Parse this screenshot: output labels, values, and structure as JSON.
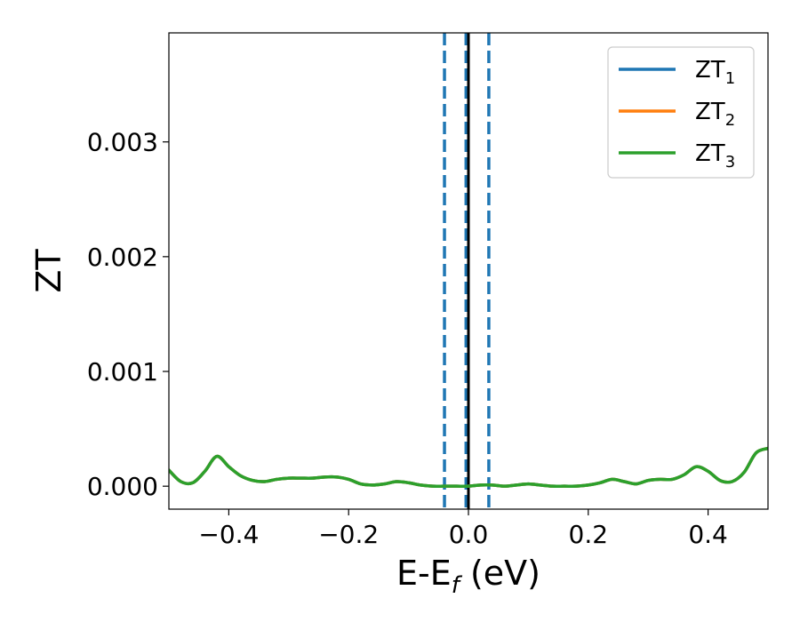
{
  "chart_data": {
    "type": "line",
    "xlabel": "E-E",
    "xlabel_sub": "f",
    "xlabel_unit": " (eV)",
    "ylabel": "ZT",
    "xlim": [
      -0.5,
      0.5
    ],
    "ylim": [
      -0.0002,
      0.00395
    ],
    "x_ticks": [
      -0.4,
      -0.2,
      0.0,
      0.2,
      0.4
    ],
    "x_tick_labels": [
      "−0.4",
      "−0.2",
      "0.0",
      "0.2",
      "0.4"
    ],
    "y_ticks": [
      0.0,
      0.001,
      0.002,
      0.003
    ],
    "y_tick_labels": [
      "0.000",
      "0.001",
      "0.002",
      "0.003"
    ],
    "legend_position": "top-right",
    "x": [
      -0.5,
      -0.48,
      -0.46,
      -0.44,
      -0.42,
      -0.4,
      -0.38,
      -0.36,
      -0.34,
      -0.32,
      -0.3,
      -0.28,
      -0.26,
      -0.24,
      -0.22,
      -0.2,
      -0.18,
      -0.16,
      -0.14,
      -0.12,
      -0.1,
      -0.08,
      -0.06,
      -0.04,
      -0.02,
      0.0,
      0.02,
      0.04,
      0.06,
      0.08,
      0.1,
      0.12,
      0.14,
      0.16,
      0.18,
      0.2,
      0.22,
      0.24,
      0.26,
      0.28,
      0.3,
      0.32,
      0.34,
      0.36,
      0.38,
      0.4,
      0.42,
      0.44,
      0.46,
      0.48,
      0.5
    ],
    "series": [
      {
        "name": "ZT",
        "sub": "1",
        "color": "#1f77b4",
        "values": [
          0.00014,
          4e-05,
          3e-05,
          0.00013,
          0.00026,
          0.00017,
          9e-05,
          5e-05,
          4e-05,
          6e-05,
          7e-05,
          7e-05,
          7e-05,
          8e-05,
          8e-05,
          6e-05,
          2e-05,
          1e-05,
          2e-05,
          4e-05,
          3e-05,
          1e-05,
          0.0,
          0.0,
          0.0,
          0.0,
          1e-05,
          1e-05,
          0.0,
          1e-05,
          2e-05,
          1e-05,
          0.0,
          0.0,
          0.0,
          1e-05,
          3e-05,
          6e-05,
          4e-05,
          2e-05,
          5e-05,
          6e-05,
          6e-05,
          0.0001,
          0.00017,
          0.00013,
          5e-05,
          4e-05,
          0.00012,
          0.00029,
          0.00033
        ]
      },
      {
        "name": "ZT",
        "sub": "2",
        "color": "#ff7f0e",
        "values": [
          0.00014,
          4e-05,
          3e-05,
          0.00013,
          0.00026,
          0.00017,
          9e-05,
          5e-05,
          4e-05,
          6e-05,
          7e-05,
          7e-05,
          7e-05,
          8e-05,
          8e-05,
          6e-05,
          2e-05,
          1e-05,
          2e-05,
          4e-05,
          3e-05,
          1e-05,
          0.0,
          0.0,
          0.0,
          0.0,
          1e-05,
          1e-05,
          0.0,
          1e-05,
          2e-05,
          1e-05,
          0.0,
          0.0,
          0.0,
          1e-05,
          3e-05,
          6e-05,
          4e-05,
          2e-05,
          5e-05,
          6e-05,
          6e-05,
          0.0001,
          0.00017,
          0.00013,
          5e-05,
          4e-05,
          0.00012,
          0.00029,
          0.00033
        ]
      },
      {
        "name": "ZT",
        "sub": "3",
        "color": "#2ca02c",
        "values": [
          0.00014,
          4e-05,
          3e-05,
          0.00013,
          0.00026,
          0.00017,
          9e-05,
          5e-05,
          4e-05,
          6e-05,
          7e-05,
          7e-05,
          7e-05,
          8e-05,
          8e-05,
          6e-05,
          2e-05,
          1e-05,
          2e-05,
          4e-05,
          3e-05,
          1e-05,
          0.0,
          0.0,
          0.0,
          0.0,
          1e-05,
          1e-05,
          0.0,
          1e-05,
          2e-05,
          1e-05,
          0.0,
          0.0,
          0.0,
          1e-05,
          3e-05,
          6e-05,
          4e-05,
          2e-05,
          5e-05,
          6e-05,
          6e-05,
          0.0001,
          0.00017,
          0.00013,
          5e-05,
          4e-05,
          0.00012,
          0.00029,
          0.00033
        ]
      }
    ],
    "vlines": [
      {
        "x": -0.04,
        "style": "dashed",
        "color": "#1f77b4"
      },
      {
        "x": -0.004,
        "style": "dashed",
        "color": "#1f77b4"
      },
      {
        "x": 0.034,
        "style": "dashed",
        "color": "#1f77b4"
      },
      {
        "x": 0.0,
        "style": "solid",
        "color": "#000000"
      }
    ]
  }
}
